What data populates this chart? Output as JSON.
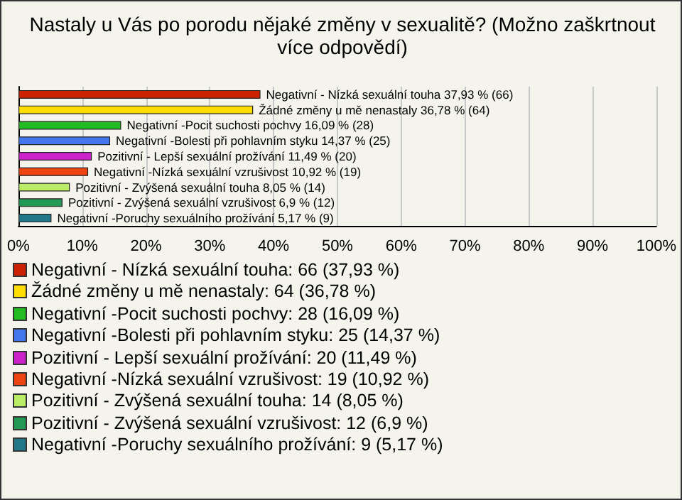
{
  "chart_data": {
    "type": "bar",
    "orientation": "horizontal",
    "title": "Nastaly u Vás po porodu nějaké změny v sexualitě? (Možno zaškrtnout více odpovědí)",
    "categories": [
      null,
      null,
      null,
      null,
      null,
      null,
      null,
      null,
      null
    ],
    "values": [
      37.93,
      36.78,
      16.09,
      14.37,
      11.49,
      10.92,
      8.05,
      6.9,
      5.17
    ],
    "colors": [
      "#cc2200",
      "#ffdd00",
      "#22bb22",
      "#4477ee",
      "#cc22cc",
      "#ee4411",
      "#bbee66",
      "#229955",
      "#227788"
    ],
    "value_labels": [
      "Negativní - Nízká sexuální touha 37,93 % (66)",
      "Žádné změny u mě nenastaly 36,78 % (64)",
      "Negativní -Pocit suchosti pochvy 16,09 % (28)",
      "Negativní -Bolesti při pohlavním styku 14,37 % (25)",
      "Pozitivní - Lepší sexuální prožívání 11,49 % (20)",
      "Negativní -Nízká sexuální vzrušivost 10,92 % (19)",
      "Pozitivní - Zvýšená sexuální touha 8,05 % (14)",
      "Pozitivní - Zvýšená sexuální vzrušivost 6,9 % (12)",
      "Negativní -Poruchy sexuálního prožívání 5,17 % (9)"
    ],
    "annotations": [
      "Negativní - Nízká sexuální touha: 66 (37,93 %)",
      "Žádné změny u mě nenastaly: 64 (36,78 %)",
      "Negativní -Pocit suchosti pochvy: 28 (16,09 %)",
      "Negativní -Bolesti při pohlavním styku: 25 (14,37 %)",
      "Pozitivní - Lepší sexuální prožívání: 20 (11,49 %)",
      "Negativní -Nízká sexuální vzrušivost: 19 (10,92 %)",
      "Pozitivní - Zvýšená sexuální touha: 14 (8,05 %)",
      "Pozitivní - Zvýšená sexuální vzrušivost: 12 (6,9 %)",
      "Negativní -Poruchy sexuálního prožívání: 9 (5,17 %)"
    ],
    "xlim": [
      0,
      100
    ],
    "xticks": [
      {
        "value": 0,
        "label": "0%"
      },
      {
        "value": 10,
        "label": "10%"
      },
      {
        "value": 20,
        "label": "20%"
      },
      {
        "value": 30,
        "label": "30%"
      },
      {
        "value": 40,
        "label": "40%"
      },
      {
        "value": 50,
        "label": "50%"
      },
      {
        "value": 60,
        "label": "60%"
      },
      {
        "value": 70,
        "label": "70%"
      },
      {
        "value": 80,
        "label": "80%"
      },
      {
        "value": 90,
        "label": "90%"
      },
      {
        "value": 100,
        "label": "100%"
      }
    ],
    "grid": "x"
  }
}
